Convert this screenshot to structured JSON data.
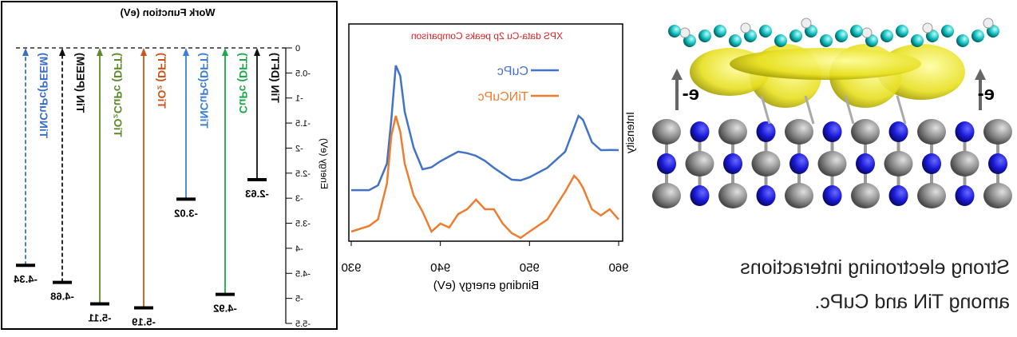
{
  "chart_data": [
    {
      "type": "level",
      "title": "Work Function (eV)",
      "y_label": "Energy (eV)",
      "categories": [
        "TiNCuPc(PEEM)",
        "TiN (PEEM)",
        "TiO₂CuPc (DFT)",
        "TiO₂ (DFT)",
        "TiNCuPc(DFT)",
        "CuPc (DFT)",
        "TiN (DFT)"
      ],
      "values": [
        -4.34,
        -4.68,
        -5.11,
        -5.19,
        -3.02,
        -4.92,
        -2.63
      ],
      "colors": [
        "#3a6fc4",
        "#111111",
        "#5b8a2b",
        "#c8561a",
        "#3b7dd8",
        "#1fa84a",
        "#111111"
      ],
      "dashed": [
        true,
        true,
        false,
        false,
        false,
        false,
        false
      ],
      "ylim": [
        -5.5,
        0
      ],
      "yticks": [
        0,
        -0.5,
        -1,
        -1.5,
        -2,
        -2.5,
        -3,
        -3.5,
        -4,
        -4.5,
        -5,
        -5.5
      ]
    },
    {
      "type": "line",
      "title": "XPS data-Cu 2p peaks Comparison",
      "x_label": "Binding energy (eV)",
      "y_label": "Intensity",
      "x": [
        930,
        932,
        933,
        934,
        934.5,
        935,
        935.5,
        936,
        937,
        938,
        939,
        940,
        941,
        942,
        943,
        944,
        945,
        946,
        947,
        948,
        949,
        950,
        952,
        954,
        955,
        955.5,
        956,
        957,
        958,
        959,
        960
      ],
      "series": [
        {
          "name": "CuPc",
          "color": "#4472c4",
          "values": [
            0.235,
            0.235,
            0.257,
            0.357,
            0.559,
            0.809,
            0.761,
            0.596,
            0.43,
            0.331,
            0.34,
            0.368,
            0.39,
            0.412,
            0.405,
            0.393,
            0.37,
            0.338,
            0.31,
            0.283,
            0.28,
            0.294,
            0.338,
            0.412,
            0.522,
            0.577,
            0.559,
            0.456,
            0.419,
            0.42,
            0.419
          ]
        },
        {
          "name": "TiNCuPc",
          "color": "#ed7d31",
          "values": [
            0.044,
            0.07,
            0.1,
            0.265,
            0.485,
            0.577,
            0.504,
            0.357,
            0.21,
            0.136,
            0.044,
            0.081,
            0.063,
            0.125,
            0.147,
            0.191,
            0.147,
            0.147,
            0.081,
            0.037,
            0.015,
            0.044,
            0.1,
            0.228,
            0.301,
            0.28,
            0.246,
            0.147,
            0.118,
            0.147,
            0.1
          ]
        }
      ],
      "xlim": [
        960,
        930
      ],
      "xticks": [
        930,
        940,
        950,
        960
      ],
      "ylim": [
        0,
        1
      ]
    }
  ],
  "illustration": {
    "electron_label": "e-",
    "caption": [
      "Strong electroning interactions",
      "among TiN and CuPc."
    ]
  }
}
